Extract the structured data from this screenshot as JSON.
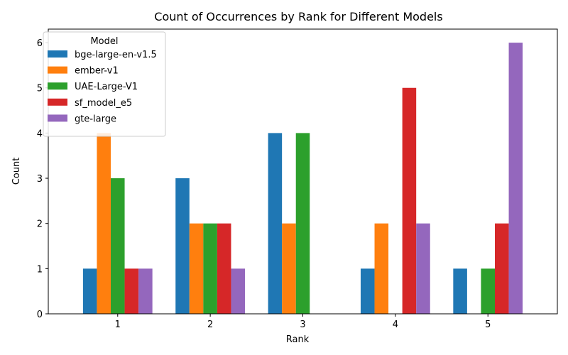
{
  "chart_data": {
    "type": "bar",
    "title": "Count of Occurrences by Rank for Different Models",
    "xlabel": "Rank",
    "ylabel": "Count",
    "categories": [
      "1",
      "2",
      "3",
      "4",
      "5"
    ],
    "ylim": [
      0,
      6.3
    ],
    "yticks": [
      0,
      1,
      2,
      3,
      4,
      5,
      6
    ],
    "grid": false,
    "legend": {
      "title": "Model",
      "placement": "top-left"
    },
    "series": [
      {
        "name": "bge-large-en-v1.5",
        "color": "#1f77b4",
        "values": [
          1,
          3,
          4,
          1,
          1
        ]
      },
      {
        "name": "ember-v1",
        "color": "#ff7f0e",
        "values": [
          4,
          2,
          2,
          2,
          0
        ]
      },
      {
        "name": "UAE-Large-V1",
        "color": "#2ca02c",
        "values": [
          3,
          2,
          4,
          0,
          1
        ]
      },
      {
        "name": "sf_model_e5",
        "color": "#d62728",
        "values": [
          1,
          2,
          0,
          5,
          2
        ]
      },
      {
        "name": "gte-large",
        "color": "#9467bd",
        "values": [
          1,
          1,
          0,
          2,
          6
        ]
      }
    ]
  }
}
